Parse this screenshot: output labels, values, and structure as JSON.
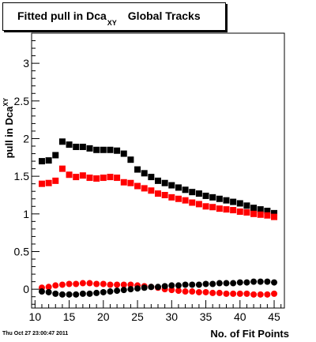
{
  "chart_data": {
    "type": "scatter",
    "title": "Fitted pull in Dca",
    "title_subscript": "XY",
    "title_suffix": "Global Tracks",
    "xlabel": "No. of Fit Points",
    "ylabel": "pull in Dca",
    "ylabel_subscript": "XY",
    "xlim": [
      9.5,
      46.5
    ],
    "ylim": [
      -0.25,
      3.4
    ],
    "x_ticks": [
      10,
      15,
      20,
      25,
      30,
      35,
      40,
      45
    ],
    "y_ticks": [
      0,
      0.5,
      1,
      1.5,
      2,
      2.5,
      3
    ],
    "y_tick_labels": [
      "0",
      "0.5",
      "1",
      "1.5",
      "2",
      "2.5",
      "3"
    ],
    "grid": false,
    "timestamp": "Thu Oct 27 23:00:47 2011",
    "series": [
      {
        "marker": "square",
        "color": "#000000",
        "x": [
          11,
          12,
          13,
          14,
          15,
          16,
          17,
          18,
          19,
          20,
          21,
          22,
          23,
          24,
          25,
          26,
          27,
          28,
          29,
          30,
          31,
          32,
          33,
          34,
          35,
          36,
          37,
          38,
          39,
          40,
          41,
          42,
          43,
          44,
          45
        ],
        "y": [
          1.7,
          1.71,
          1.78,
          1.96,
          1.92,
          1.89,
          1.89,
          1.87,
          1.85,
          1.85,
          1.85,
          1.84,
          1.8,
          1.72,
          1.59,
          1.54,
          1.49,
          1.44,
          1.41,
          1.38,
          1.35,
          1.32,
          1.29,
          1.27,
          1.24,
          1.22,
          1.2,
          1.18,
          1.16,
          1.14,
          1.11,
          1.08,
          1.06,
          1.04,
          1.01
        ]
      },
      {
        "marker": "square",
        "color": "#ff0000",
        "x": [
          11,
          12,
          13,
          14,
          15,
          16,
          17,
          18,
          19,
          20,
          21,
          22,
          23,
          24,
          25,
          26,
          27,
          28,
          29,
          30,
          31,
          32,
          33,
          34,
          35,
          36,
          37,
          38,
          39,
          40,
          41,
          42,
          43,
          44,
          45
        ],
        "y": [
          1.4,
          1.41,
          1.44,
          1.6,
          1.52,
          1.49,
          1.51,
          1.48,
          1.47,
          1.48,
          1.49,
          1.48,
          1.42,
          1.41,
          1.37,
          1.34,
          1.31,
          1.27,
          1.25,
          1.22,
          1.2,
          1.18,
          1.15,
          1.13,
          1.1,
          1.09,
          1.07,
          1.06,
          1.05,
          1.03,
          1.02,
          1.0,
          0.99,
          0.98,
          0.96
        ]
      },
      {
        "marker": "circle",
        "color": "#ff0000",
        "x": [
          11,
          12,
          13,
          14,
          15,
          16,
          17,
          18,
          19,
          20,
          21,
          22,
          23,
          24,
          25,
          26,
          27,
          28,
          29,
          30,
          31,
          32,
          33,
          34,
          35,
          36,
          37,
          38,
          39,
          40,
          41,
          42,
          43,
          44,
          45
        ],
        "y": [
          0.02,
          0.03,
          0.05,
          0.06,
          0.07,
          0.07,
          0.08,
          0.08,
          0.07,
          0.07,
          0.06,
          0.06,
          0.06,
          0.06,
          0.05,
          0.04,
          0.03,
          0.02,
          0.0,
          -0.01,
          -0.02,
          -0.03,
          -0.03,
          -0.04,
          -0.04,
          -0.05,
          -0.05,
          -0.06,
          -0.06,
          -0.06,
          -0.06,
          -0.07,
          -0.07,
          -0.07,
          -0.06
        ]
      },
      {
        "marker": "circle",
        "color": "#000000",
        "x": [
          11,
          12,
          13,
          14,
          15,
          16,
          17,
          18,
          19,
          20,
          21,
          22,
          23,
          24,
          25,
          26,
          27,
          28,
          29,
          30,
          31,
          32,
          33,
          34,
          35,
          36,
          37,
          38,
          39,
          40,
          41,
          42,
          43,
          44,
          45
        ],
        "y": [
          -0.03,
          -0.04,
          -0.06,
          -0.07,
          -0.07,
          -0.07,
          -0.06,
          -0.06,
          -0.05,
          -0.04,
          -0.03,
          -0.02,
          -0.01,
          0.0,
          0.01,
          0.02,
          0.03,
          0.03,
          0.04,
          0.05,
          0.05,
          0.06,
          0.06,
          0.06,
          0.07,
          0.07,
          0.08,
          0.08,
          0.08,
          0.09,
          0.09,
          0.1,
          0.1,
          0.1,
          0.09
        ]
      }
    ]
  }
}
